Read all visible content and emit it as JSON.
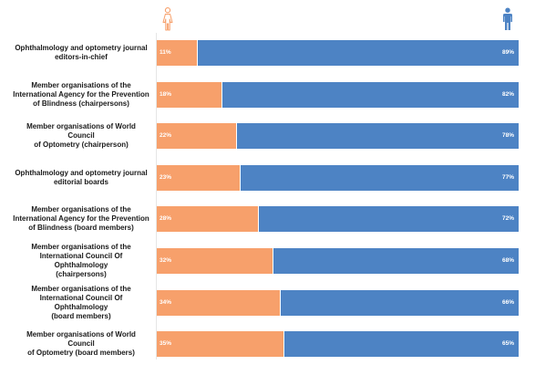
{
  "colors": {
    "female": "#f7a06b",
    "male": "#4d83c4"
  },
  "legend_icons": {
    "female": "female-person-icon",
    "male": "male-person-icon"
  },
  "chart_data": {
    "type": "bar",
    "orientation": "horizontal",
    "stacked": true,
    "percent_stacked": true,
    "xlim": [
      0,
      100
    ],
    "categories": [
      "Ophthalmology and optometry journal editors-in-chief",
      "Member organisations of the International Agency for the Prevention of Blindness (chairpersons)",
      "Member organisations of World Council of Optometry (chairperson)",
      "Ophthalmology and optometry journal editorial boards",
      "Member organisations of the International Agency for the Prevention of Blindness (board members)",
      "Member organisations of the International Council Of Ophthalmology (chairpersons)",
      "Member organisations of the International Council Of Ophthalmology (board members)",
      "Member organisations of World Council of Optometry (board members)"
    ],
    "labels_display": [
      [
        "Ophthalmology and optometry journal",
        "editors-in-chief"
      ],
      [
        "Member organisations of the",
        "International Agency for the Prevention",
        "of Blindness (chairpersons)"
      ],
      [
        "Member organisations of World Council",
        "of Optometry (chairperson)"
      ],
      [
        "Ophthalmology and optometry journal",
        "editorial boards"
      ],
      [
        "Member organisations of the",
        "International Agency for the Prevention",
        "of Blindness (board members)"
      ],
      [
        "Member organisations of the",
        "International Council Of Ophthalmology",
        "(chairpersons)"
      ],
      [
        "Member organisations of the",
        "International Council Of Ophthalmology",
        "(board members)"
      ],
      [
        "Member organisations of World Council",
        "of Optometry (board members)"
      ]
    ],
    "series": [
      {
        "values": [
          11,
          18,
          22,
          23,
          28,
          32,
          34,
          35
        ],
        "labels": [
          "11%",
          "18%",
          "22%",
          "23%",
          "28%",
          "32%",
          "34%",
          "35%"
        ]
      },
      {
        "values": [
          89,
          82,
          78,
          77,
          72,
          68,
          66,
          65
        ],
        "labels": [
          "89%",
          "82%",
          "78%",
          "77%",
          "72%",
          "68%",
          "66%",
          "65%"
        ]
      }
    ],
    "grid": false,
    "legend": "top"
  }
}
